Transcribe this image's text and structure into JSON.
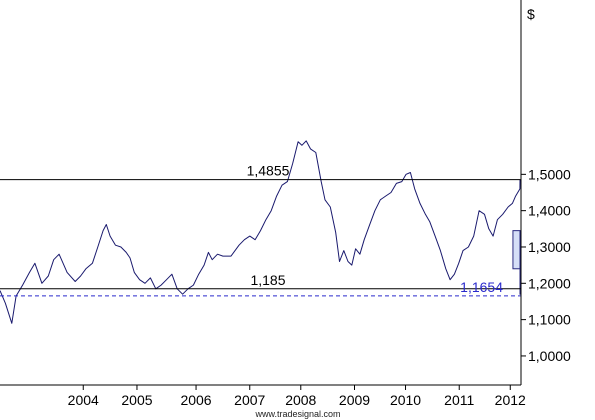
{
  "chart_data": {
    "type": "line",
    "currency_symbol": "$",
    "ylim": [
      0.92,
      1.98
    ],
    "x_range": [
      2003.0,
      2012.7
    ],
    "y_ticks": [
      {
        "value": 1.5,
        "label": "1,5000"
      },
      {
        "value": 1.4,
        "label": "1,4000"
      },
      {
        "value": 1.3,
        "label": "1,3000"
      },
      {
        "value": 1.2,
        "label": "1,2000"
      },
      {
        "value": 1.1,
        "label": "1,1000"
      },
      {
        "value": 1.0,
        "label": "1,0000"
      }
    ],
    "x_ticks": [
      {
        "value": 2004.55,
        "label": "2004"
      },
      {
        "value": 2005.55,
        "label": "2005"
      },
      {
        "value": 2006.65,
        "label": "2006"
      },
      {
        "value": 2007.65,
        "label": "2007"
      },
      {
        "value": 2008.6,
        "label": "2008"
      },
      {
        "value": 2009.6,
        "label": "2009"
      },
      {
        "value": 2010.55,
        "label": "2010"
      },
      {
        "value": 2011.55,
        "label": "2011"
      },
      {
        "value": 2012.5,
        "label": "2012"
      }
    ],
    "series": [
      {
        "color": "#1a1a6e",
        "points": [
          [
            2003.0,
            1.18
          ],
          [
            2003.1,
            1.145
          ],
          [
            2003.22,
            1.09
          ],
          [
            2003.3,
            1.165
          ],
          [
            2003.42,
            1.195
          ],
          [
            2003.55,
            1.23
          ],
          [
            2003.65,
            1.255
          ],
          [
            2003.78,
            1.2
          ],
          [
            2003.9,
            1.22
          ],
          [
            2004.0,
            1.265
          ],
          [
            2004.1,
            1.28
          ],
          [
            2004.25,
            1.23
          ],
          [
            2004.4,
            1.205
          ],
          [
            2004.5,
            1.22
          ],
          [
            2004.6,
            1.24
          ],
          [
            2004.72,
            1.255
          ],
          [
            2004.82,
            1.3
          ],
          [
            2004.92,
            1.345
          ],
          [
            2004.98,
            1.362
          ],
          [
            2005.05,
            1.33
          ],
          [
            2005.15,
            1.305
          ],
          [
            2005.25,
            1.3
          ],
          [
            2005.35,
            1.285
          ],
          [
            2005.42,
            1.27
          ],
          [
            2005.5,
            1.23
          ],
          [
            2005.6,
            1.21
          ],
          [
            2005.7,
            1.2
          ],
          [
            2005.8,
            1.215
          ],
          [
            2005.9,
            1.185
          ],
          [
            2006.0,
            1.195
          ],
          [
            2006.1,
            1.21
          ],
          [
            2006.2,
            1.225
          ],
          [
            2006.3,
            1.185
          ],
          [
            2006.4,
            1.17
          ],
          [
            2006.5,
            1.185
          ],
          [
            2006.6,
            1.195
          ],
          [
            2006.7,
            1.225
          ],
          [
            2006.8,
            1.25
          ],
          [
            2006.88,
            1.285
          ],
          [
            2006.95,
            1.265
          ],
          [
            2007.05,
            1.28
          ],
          [
            2007.15,
            1.275
          ],
          [
            2007.3,
            1.275
          ],
          [
            2007.45,
            1.305
          ],
          [
            2007.55,
            1.32
          ],
          [
            2007.65,
            1.33
          ],
          [
            2007.75,
            1.32
          ],
          [
            2007.85,
            1.345
          ],
          [
            2007.95,
            1.375
          ],
          [
            2008.05,
            1.4
          ],
          [
            2008.15,
            1.44
          ],
          [
            2008.25,
            1.47
          ],
          [
            2008.35,
            1.48
          ],
          [
            2008.45,
            1.53
          ],
          [
            2008.55,
            1.59
          ],
          [
            2008.62,
            1.58
          ],
          [
            2008.7,
            1.592
          ],
          [
            2008.78,
            1.57
          ],
          [
            2008.88,
            1.56
          ],
          [
            2008.98,
            1.48
          ],
          [
            2009.05,
            1.43
          ],
          [
            2009.15,
            1.41
          ],
          [
            2009.25,
            1.34
          ],
          [
            2009.32,
            1.26
          ],
          [
            2009.4,
            1.29
          ],
          [
            2009.48,
            1.26
          ],
          [
            2009.55,
            1.25
          ],
          [
            2009.62,
            1.295
          ],
          [
            2009.7,
            1.28
          ],
          [
            2009.78,
            1.32
          ],
          [
            2009.88,
            1.36
          ],
          [
            2009.98,
            1.4
          ],
          [
            2010.08,
            1.43
          ],
          [
            2010.18,
            1.44
          ],
          [
            2010.28,
            1.45
          ],
          [
            2010.38,
            1.475
          ],
          [
            2010.48,
            1.48
          ],
          [
            2010.56,
            1.5
          ],
          [
            2010.64,
            1.505
          ],
          [
            2010.72,
            1.46
          ],
          [
            2010.82,
            1.42
          ],
          [
            2010.92,
            1.39
          ],
          [
            2011.0,
            1.37
          ],
          [
            2011.1,
            1.33
          ],
          [
            2011.2,
            1.29
          ],
          [
            2011.3,
            1.24
          ],
          [
            2011.38,
            1.21
          ],
          [
            2011.46,
            1.225
          ],
          [
            2011.54,
            1.255
          ],
          [
            2011.62,
            1.29
          ],
          [
            2011.72,
            1.3
          ],
          [
            2011.82,
            1.33
          ],
          [
            2011.92,
            1.4
          ],
          [
            2012.02,
            1.39
          ],
          [
            2012.1,
            1.35
          ],
          [
            2012.18,
            1.33
          ],
          [
            2012.26,
            1.375
          ],
          [
            2012.36,
            1.39
          ],
          [
            2012.46,
            1.41
          ],
          [
            2012.54,
            1.42
          ],
          [
            2012.6,
            1.44
          ],
          [
            2012.68,
            1.46
          ],
          [
            2012.74,
            1.485
          ]
        ]
      }
    ],
    "horizontal_lines": [
      {
        "value": 1.4855,
        "label": "1,4855",
        "style": "solid",
        "color": "#000000"
      },
      {
        "value": 1.185,
        "label": "1,185",
        "style": "solid",
        "color": "#000000"
      },
      {
        "value": 1.1654,
        "label": "1,1654",
        "style": "dashed",
        "color": "#2a2acc"
      }
    ],
    "highlight_boxes": [
      {
        "x0": 2012.55,
        "x1": 2012.95,
        "y0": 1.24,
        "y1": 1.345
      },
      {
        "x0": 2012.95,
        "x1": 2013.4,
        "y0": 1.17,
        "y1": 1.275
      }
    ],
    "grid": false
  },
  "footer": {
    "source": "www.tradesignal.com"
  }
}
